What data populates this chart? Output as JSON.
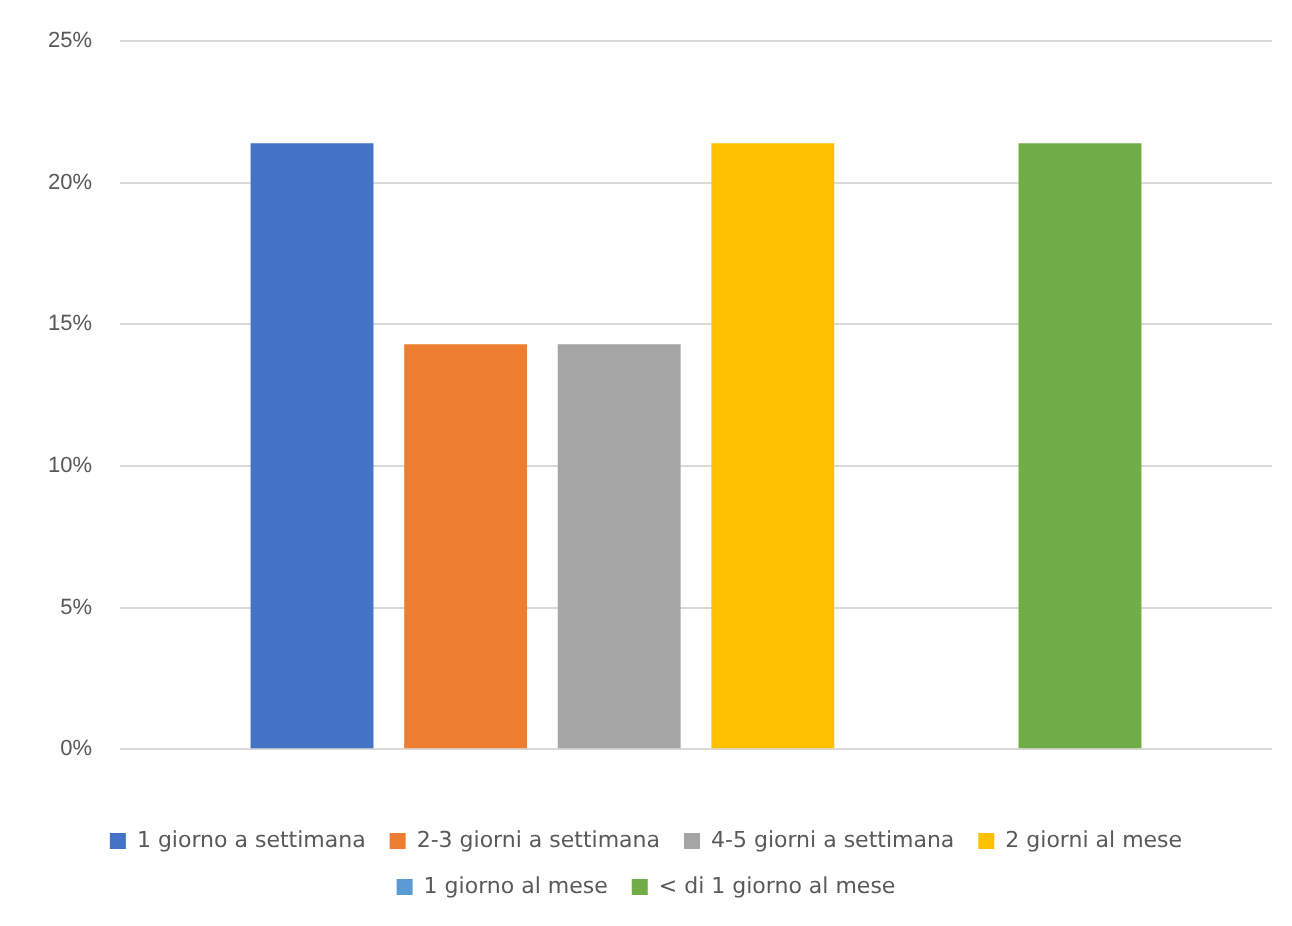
{
  "chart_data": {
    "type": "bar",
    "categories": [
      null
    ],
    "series": [
      {
        "name": "1 giorno a settimana",
        "color": "#4472c4",
        "values": [
          21.4
        ]
      },
      {
        "name": "2-3 giorni a settimana",
        "color": "#ed7d31",
        "values": [
          14.3
        ]
      },
      {
        "name": "4-5 giorni a settimana",
        "color": "#a5a5a5",
        "values": [
          14.3
        ]
      },
      {
        "name": "2 giorni al mese",
        "color": "#ffc000",
        "values": [
          21.4
        ]
      },
      {
        "name": "1 giorno al mese",
        "color": "#5b9bd5",
        "values": [
          0
        ]
      },
      {
        "name": "< di 1 giorno al mese",
        "color": "#70ad47",
        "values": [
          21.4
        ]
      }
    ],
    "ylim": [
      0,
      25
    ],
    "yticks": [
      {
        "value": 0,
        "label": "0%"
      },
      {
        "value": 5,
        "label": "5%"
      },
      {
        "value": 10,
        "label": "10%"
      },
      {
        "value": 15,
        "label": "15%"
      },
      {
        "value": 20,
        "label": "20%"
      },
      {
        "value": 25,
        "label": "25%"
      }
    ],
    "grid": "y",
    "legend": "bottom"
  }
}
